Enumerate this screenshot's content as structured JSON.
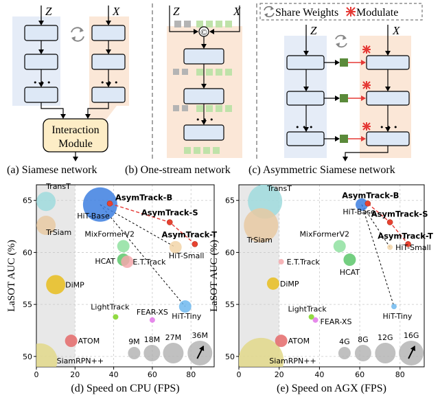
{
  "diagrams": {
    "siamese": {
      "input_left": "Z",
      "input_right": "X",
      "ellipsis_left": "• • •",
      "ellipsis_right": "• • •",
      "module_line1": "Interaction",
      "module_line2": "Module",
      "caption": "(a) Siamese network"
    },
    "one_stream": {
      "input_left": "Z",
      "input_right": "X",
      "concat_symbol": "©",
      "ellipsis": "• • •",
      "caption": "(b) One-stream network"
    },
    "asymmetric": {
      "legend_share": "Share Weights",
      "legend_modulate": "Modulate",
      "input_left": "Z",
      "input_right": "X",
      "ellipsis_left": "• • •",
      "ellipsis_right": "• • •",
      "caption": "(c) Asymmetric Siamese network"
    }
  },
  "colors": {
    "z_panel": "#e5ecf7",
    "x_panel": "#fbe7d7",
    "block": "#dde8f6",
    "module_fill": "#fdedc6",
    "patch_gray": "#b4b4b4",
    "patch_green": "#bfe2a9",
    "modulator": "#5a8a3a",
    "modulate_red": "#e53935"
  },
  "chart_data": [
    {
      "type": "scatter",
      "caption": "(d) Speed on CPU (FPS)",
      "xlabel": "Speed on CPU (FPS)",
      "ylabel": "LaSOT AUC (%)",
      "xlim": [
        0,
        92
      ],
      "ylim": [
        49,
        66.5
      ],
      "xticks": [
        0,
        20,
        40,
        60,
        80
      ],
      "yticks": [
        50,
        55,
        60,
        65
      ],
      "grid": true,
      "shaded_region_x": [
        0,
        20
      ],
      "points": [
        {
          "name": "TransT",
          "x": 5,
          "y": 64.9,
          "color": "#9fdbdd",
          "size": "medium"
        },
        {
          "name": "TrSiam",
          "x": 5,
          "y": 62.6,
          "color": "#e7c9a2",
          "size": "medium"
        },
        {
          "name": "DiMP",
          "x": 10,
          "y": 56.9,
          "color": "#e8bd1d",
          "size": "medium"
        },
        {
          "name": "ATOM",
          "x": 18,
          "y": 51.5,
          "color": "#e46a6a",
          "size": "small"
        },
        {
          "name": "SiamRPN++",
          "x": 2,
          "y": 49.6,
          "color": "#e2d88a",
          "size": "large"
        },
        {
          "name": "HiT-Base",
          "x": 33,
          "y": 64.6,
          "color": "#3d7fe0",
          "size": "large"
        },
        {
          "name": "MixFormerV2",
          "x": 45,
          "y": 60.6,
          "color": "#8fe0a0",
          "size": "small"
        },
        {
          "name": "HCAT",
          "x": 45,
          "y": 59.3,
          "color": "#5cc76b",
          "size": "small"
        },
        {
          "name": "E.T.Track",
          "x": 47,
          "y": 59.1,
          "color": "#f5a8ab",
          "size": "small"
        },
        {
          "name": "HiT-Small",
          "x": 72,
          "y": 60.5,
          "color": "#f2d5a8",
          "size": "small"
        },
        {
          "name": "HiT-Tiny",
          "x": 77,
          "y": 54.8,
          "color": "#6fb8ee",
          "size": "small"
        },
        {
          "name": "LightTrack",
          "x": 41,
          "y": 53.8,
          "color": "#7ed321",
          "size": "tiny"
        },
        {
          "name": "FEAR-XS",
          "x": 60,
          "y": 53.5,
          "color": "#e276e8",
          "size": "tiny"
        },
        {
          "name": "AsymTrack-B",
          "x": 38,
          "y": 64.7,
          "color": "#e84530",
          "size": "tiny"
        },
        {
          "name": "AsymTrack-S",
          "x": 69,
          "y": 62.9,
          "color": "#e84530",
          "size": "tiny"
        },
        {
          "name": "AsymTrack-T",
          "x": 82,
          "y": 60.8,
          "color": "#e84530",
          "size": "tiny"
        }
      ],
      "size_legend": [
        "9M",
        "18M",
        "27M",
        "36M"
      ]
    },
    {
      "type": "scatter",
      "caption": "(e) Speed on AGX (FPS)",
      "xlabel": "Speed on AGX (FPS)",
      "ylabel": "LaSOT AUC (%)",
      "xlim": [
        0,
        92
      ],
      "ylim": [
        49,
        66.5
      ],
      "xticks": [
        0,
        20,
        40,
        60,
        80
      ],
      "yticks": [
        50,
        55,
        60,
        65
      ],
      "grid": true,
      "shaded_region_x": [
        0,
        20
      ],
      "points": [
        {
          "name": "TransT",
          "x": 13,
          "y": 64.9,
          "color": "#9fdbdd",
          "size": "large"
        },
        {
          "name": "TrSiam",
          "x": 11,
          "y": 62.6,
          "color": "#e7c9a2",
          "size": "large"
        },
        {
          "name": "E.T.Track",
          "x": 21,
          "y": 59.1,
          "color": "#f5a8ab",
          "size": "tiny"
        },
        {
          "name": "DiMP",
          "x": 17,
          "y": 57.0,
          "color": "#e8bd1d",
          "size": "small"
        },
        {
          "name": "ATOM",
          "x": 21,
          "y": 51.5,
          "color": "#e46a6a",
          "size": "small"
        },
        {
          "name": "SiamRPN++",
          "x": 11,
          "y": 49.6,
          "color": "#e2d88a",
          "size": "xlarge"
        },
        {
          "name": "HiT-Base",
          "x": 61,
          "y": 64.6,
          "color": "#3d7fe0",
          "size": "small"
        },
        {
          "name": "MixFormerV2",
          "x": 50,
          "y": 60.6,
          "color": "#8fe0a0",
          "size": "small"
        },
        {
          "name": "HCAT",
          "x": 55,
          "y": 59.3,
          "color": "#5cc76b",
          "size": "small"
        },
        {
          "name": "HiT-Small",
          "x": 75,
          "y": 60.5,
          "color": "#f2d5a8",
          "size": "tiny"
        },
        {
          "name": "HiT-Tiny",
          "x": 77,
          "y": 54.8,
          "color": "#6fb8ee",
          "size": "tiny"
        },
        {
          "name": "LightTrack",
          "x": 36,
          "y": 53.8,
          "color": "#7ed321",
          "size": "tiny"
        },
        {
          "name": "FEAR-XS",
          "x": 38,
          "y": 53.5,
          "color": "#e276e8",
          "size": "tiny"
        },
        {
          "name": "AsymTrack-B",
          "x": 64,
          "y": 64.7,
          "color": "#e84530",
          "size": "tiny"
        },
        {
          "name": "AsymTrack-S",
          "x": 75,
          "y": 62.9,
          "color": "#e84530",
          "size": "tiny"
        },
        {
          "name": "AsymTrack-T",
          "x": 84,
          "y": 60.8,
          "color": "#e84530",
          "size": "tiny"
        }
      ],
      "size_legend": [
        "4G",
        "8G",
        "12G",
        "16G"
      ]
    }
  ]
}
